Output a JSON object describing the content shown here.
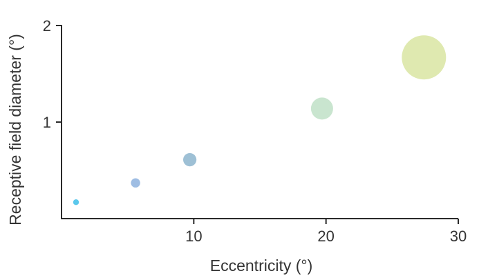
{
  "chart_data": {
    "type": "scatter",
    "title": "",
    "xlabel": "Eccentricity (°)",
    "ylabel": "Receptive field diameter (°)",
    "xlim": [
      0,
      30
    ],
    "ylim": [
      0,
      2
    ],
    "xticks": [
      10,
      20,
      30
    ],
    "yticks": [
      1,
      2
    ],
    "grid": false,
    "legend": "none",
    "points": [
      {
        "x": 1.1,
        "y": 0.17,
        "size": 0.13,
        "color": "#5bc8ec"
      },
      {
        "x": 5.6,
        "y": 0.37,
        "size": 0.21,
        "color": "#9ebde3"
      },
      {
        "x": 9.7,
        "y": 0.61,
        "size": 0.3,
        "color": "#9ec0d5"
      },
      {
        "x": 19.7,
        "y": 1.14,
        "size": 0.5,
        "color": "#c9e5cf"
      },
      {
        "x": 27.4,
        "y": 1.67,
        "size": 1.0,
        "color": "#dfe9b0"
      }
    ]
  }
}
